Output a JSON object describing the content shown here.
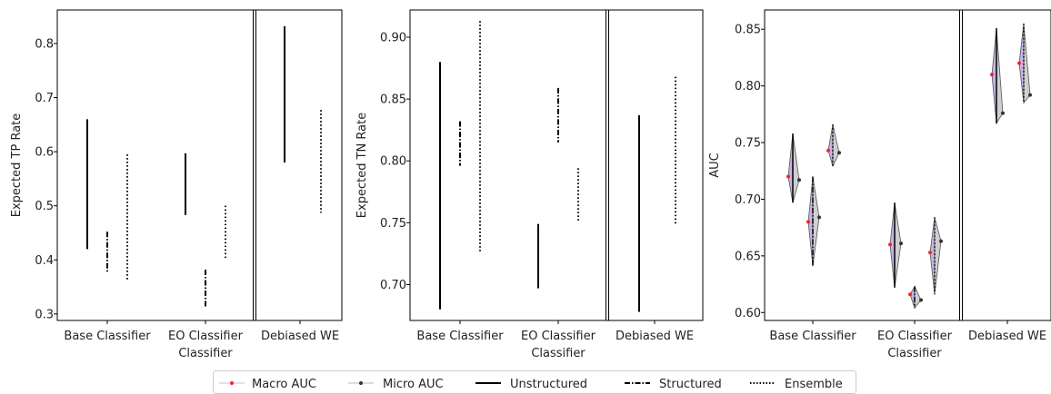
{
  "chart_data": [
    {
      "type": "range",
      "ylabel": "Expected TP Rate",
      "xlabel": "Classifier",
      "ylim": [
        0.288,
        0.862
      ],
      "yticks": [
        "0.3",
        "0.4",
        "0.5",
        "0.6",
        "0.7",
        "0.8"
      ],
      "categories": [
        "Base Classifier",
        "EO Classifier",
        "Debiased WE"
      ],
      "ranges": [
        {
          "category": "Base Classifier",
          "style": "Unstructured",
          "low": 0.42,
          "high": 0.66
        },
        {
          "category": "Base Classifier",
          "style": "Structured",
          "low": 0.375,
          "high": 0.452
        },
        {
          "category": "Base Classifier",
          "style": "Ensemble",
          "low": 0.36,
          "high": 0.595
        },
        {
          "category": "EO Classifier",
          "style": "Unstructured",
          "low": 0.483,
          "high": 0.597
        },
        {
          "category": "EO Classifier",
          "style": "Structured",
          "low": 0.314,
          "high": 0.382
        },
        {
          "category": "EO Classifier",
          "style": "Ensemble",
          "low": 0.403,
          "high": 0.5
        },
        {
          "category": "Debiased WE",
          "style": "Unstructured",
          "low": 0.58,
          "high": 0.832
        },
        {
          "category": "Debiased WE",
          "style": "Ensemble",
          "low": 0.487,
          "high": 0.677
        }
      ]
    },
    {
      "type": "range",
      "ylabel": "Expected TN Rate",
      "xlabel": "Classifier",
      "ylim": [
        0.671,
        0.922
      ],
      "yticks": [
        "0.70",
        "0.75",
        "0.80",
        "0.85",
        "0.90"
      ],
      "categories": [
        "Base Classifier",
        "EO Classifier",
        "Debiased WE"
      ],
      "ranges": [
        {
          "category": "Base Classifier",
          "style": "Unstructured",
          "low": 0.68,
          "high": 0.88
        },
        {
          "category": "Base Classifier",
          "style": "Structured",
          "low": 0.796,
          "high": 0.832
        },
        {
          "category": "Base Classifier",
          "style": "Ensemble",
          "low": 0.727,
          "high": 0.913
        },
        {
          "category": "EO Classifier",
          "style": "Unstructured",
          "low": 0.697,
          "high": 0.749
        },
        {
          "category": "EO Classifier",
          "style": "Structured",
          "low": 0.815,
          "high": 0.859
        },
        {
          "category": "EO Classifier",
          "style": "Ensemble",
          "low": 0.75,
          "high": 0.794
        },
        {
          "category": "Debiased WE",
          "style": "Unstructured",
          "low": 0.678,
          "high": 0.837
        },
        {
          "category": "Debiased WE",
          "style": "Ensemble",
          "low": 0.749,
          "high": 0.868
        }
      ]
    },
    {
      "type": "diamond",
      "ylabel": "AUC",
      "xlabel": "Classifier",
      "ylim": [
        0.593,
        0.867
      ],
      "yticks": [
        "0.60",
        "0.65",
        "0.70",
        "0.75",
        "0.80",
        "0.85"
      ],
      "categories": [
        "Base Classifier",
        "EO Classifier",
        "Debiased WE"
      ],
      "diamonds": [
        {
          "category": "Base Classifier",
          "style": "Unstructured",
          "low": 0.697,
          "high": 0.758,
          "macro": 0.72,
          "micro": 0.717
        },
        {
          "category": "Base Classifier",
          "style": "Structured",
          "low": 0.641,
          "high": 0.72,
          "macro": 0.68,
          "micro": 0.684
        },
        {
          "category": "Base Classifier",
          "style": "Ensemble",
          "low": 0.729,
          "high": 0.766,
          "macro": 0.743,
          "micro": 0.741
        },
        {
          "category": "EO Classifier",
          "style": "Unstructured",
          "low": 0.622,
          "high": 0.697,
          "macro": 0.66,
          "micro": 0.661
        },
        {
          "category": "EO Classifier",
          "style": "Structured",
          "low": 0.604,
          "high": 0.623,
          "macro": 0.616,
          "micro": 0.611
        },
        {
          "category": "EO Classifier",
          "style": "Ensemble",
          "low": 0.616,
          "high": 0.684,
          "macro": 0.653,
          "micro": 0.663
        },
        {
          "category": "Debiased WE",
          "style": "Unstructured",
          "low": 0.767,
          "high": 0.851,
          "macro": 0.81,
          "micro": 0.776
        },
        {
          "category": "Debiased WE",
          "style": "Ensemble",
          "low": 0.785,
          "high": 0.855,
          "macro": 0.82,
          "micro": 0.792
        }
      ]
    }
  ],
  "legend": [
    "Macro AUC",
    "Micro AUC",
    "Unstructured",
    "Structured",
    "Ensemble"
  ],
  "colors": {
    "macro_marker": "#ff2020",
    "micro_marker": "#333333",
    "unstructured_fill": "#c7b4e8",
    "ensemble_fill": "#cfcfcf",
    "line": "#000000"
  }
}
